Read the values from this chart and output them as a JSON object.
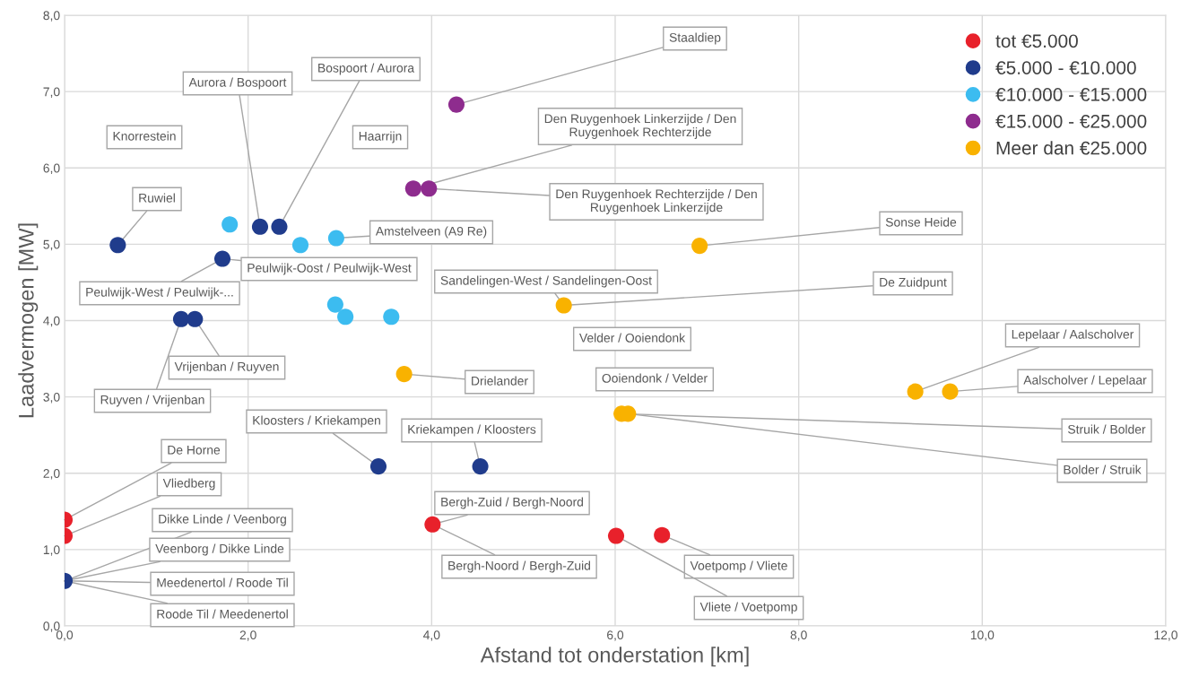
{
  "chart_data": {
    "type": "scatter",
    "xlabel": "Afstand tot onderstation [km]",
    "ylabel": "Laadvermogen [MW]",
    "xlim": [
      0,
      12
    ],
    "ylim": [
      0,
      8
    ],
    "xticks": [
      {
        "value": 0,
        "label": "0,0"
      },
      {
        "value": 2,
        "label": "2,0"
      },
      {
        "value": 4,
        "label": "4,0"
      },
      {
        "value": 6,
        "label": "6,0"
      },
      {
        "value": 8,
        "label": "8,0"
      },
      {
        "value": 10,
        "label": "10,0"
      },
      {
        "value": 12,
        "label": "12,0"
      }
    ],
    "yticks": [
      {
        "value": 0,
        "label": "0,0"
      },
      {
        "value": 1,
        "label": "1,0"
      },
      {
        "value": 2,
        "label": "2,0"
      },
      {
        "value": 3,
        "label": "3,0"
      },
      {
        "value": 4,
        "label": "4,0"
      },
      {
        "value": 5,
        "label": "5,0"
      },
      {
        "value": 6,
        "label": "6,0"
      },
      {
        "value": 7,
        "label": "7,0"
      },
      {
        "value": 8,
        "label": "8,0"
      }
    ],
    "grid": true,
    "legend": "top right",
    "marker": "circle",
    "series": [
      {
        "name": "tot €5.000",
        "color": "#e8212b",
        "x": [
          0,
          0,
          4.01,
          6.01,
          6.51
        ],
        "values": [
          1.39,
          1.18,
          1.33,
          1.18,
          1.19
        ]
      },
      {
        "name": "€5.000 - €10.000",
        "color": "#203c8c",
        "x": [
          0,
          0.58,
          1.72,
          1.27,
          1.42,
          2.13,
          2.34,
          3.42,
          4.53
        ],
        "values": [
          0.59,
          4.99,
          4.81,
          4.02,
          4.02,
          5.23,
          5.23,
          2.09,
          2.09
        ]
      },
      {
        "name": "€10.000 - €15.000",
        "color": "#3cbcf0",
        "x": [
          1.8,
          2.57,
          2.96,
          2.95,
          3.06,
          3.56
        ],
        "values": [
          5.26,
          4.99,
          5.08,
          4.21,
          4.05,
          4.05
        ]
      },
      {
        "name": "€15.000 - €25.000",
        "color": "#8e2c8e",
        "x": [
          4.27,
          3.8,
          3.97
        ],
        "values": [
          6.83,
          5.73,
          5.73
        ]
      },
      {
        "name": "Meer dan €25.000",
        "color": "#f9b200",
        "x": [
          6.92,
          5.44,
          3.7,
          6.07,
          6.14,
          9.27,
          9.65
        ],
        "values": [
          4.98,
          4.2,
          3.3,
          2.78,
          2.78,
          3.07,
          3.07
        ]
      }
    ],
    "annotations": [
      {
        "text": "Staaldiep",
        "x": 4.27,
        "y": 6.83
      },
      {
        "text": "Aurora / Bospoort",
        "x": 2.13,
        "y": 5.23
      },
      {
        "text": "Bospoort / Aurora",
        "x": 2.34,
        "y": 5.23
      },
      "Knorrestein",
      "Haarrijn",
      {
        "text": "Den Ruygenhoek Linkerzijde / Den\nRuygenhoek Rechterzijde",
        "x": 3.8,
        "y": 5.73
      },
      {
        "text": "Den Ruygenhoek Rechterzijde / Den\nRuygenhoek Linkerzijde",
        "x": 3.97,
        "y": 5.73
      },
      {
        "text": "Ruwiel",
        "x": 0.58,
        "y": 4.99
      },
      {
        "text": "Sonse Heide",
        "x": 6.92,
        "y": 4.98
      },
      {
        "text": "Amstelveen (A9 Re)",
        "x": 2.96,
        "y": 5.08
      },
      {
        "text": "Peulwijk-Oost / Peulwijk-West",
        "x": 1.72,
        "y": 4.81
      },
      {
        "text": "Peulwijk-West / Peulwijk-...",
        "x": 1.72,
        "y": 4.81
      },
      {
        "text": "Sandelingen-West / Sandelingen-Oost",
        "x": 5.44,
        "y": 4.2
      },
      {
        "text": "De Zuidpunt",
        "x": 5.44,
        "y": 4.2
      },
      "Velder / Ooiendonk",
      {
        "text": "Vrijenban / Ruyven",
        "x": 1.42,
        "y": 4.02
      },
      {
        "text": "Ruyven / Vrijenban",
        "x": 1.27,
        "y": 4.02
      },
      {
        "text": "Lepelaar / Aalscholver",
        "x": 9.27,
        "y": 3.07
      },
      {
        "text": "Aalscholver / Lepelaar",
        "x": 9.65,
        "y": 3.07
      },
      {
        "text": "Drielander",
        "x": 3.7,
        "y": 3.3
      },
      "Ooiendonk / Velder",
      {
        "text": "Kloosters / Kriekampen",
        "x": 3.42,
        "y": 2.09
      },
      {
        "text": "Kriekampen / Kloosters",
        "x": 4.53,
        "y": 2.09
      },
      {
        "text": "Struik / Bolder",
        "x": 6.07,
        "y": 2.78
      },
      {
        "text": "Bolder / Struik",
        "x": 6.14,
        "y": 2.78
      },
      {
        "text": "De Horne",
        "x": 0,
        "y": 1.39
      },
      {
        "text": "Vliedberg",
        "x": 0,
        "y": 1.18
      },
      {
        "text": "Bergh-Zuid / Bergh-Noord",
        "x": 4.01,
        "y": 1.33
      },
      {
        "text": "Bergh-Noord / Bergh-Zuid",
        "x": 4.01,
        "y": 1.33
      },
      {
        "text": "Dikke Linde / Veenborg",
        "x": 0,
        "y": 0.59
      },
      {
        "text": "Veenborg / Dikke Linde",
        "x": 0,
        "y": 0.59
      },
      {
        "text": "Meedenertol / Roode Til",
        "x": 0,
        "y": 0.59
      },
      {
        "text": "Roode Til / Meedenertol",
        "x": 0,
        "y": 0.59
      },
      {
        "text": "Voetpomp / Vliete",
        "x": 6.51,
        "y": 1.19
      },
      {
        "text": "Vliete / Voetpomp",
        "x": 6.01,
        "y": 1.18
      }
    ]
  }
}
